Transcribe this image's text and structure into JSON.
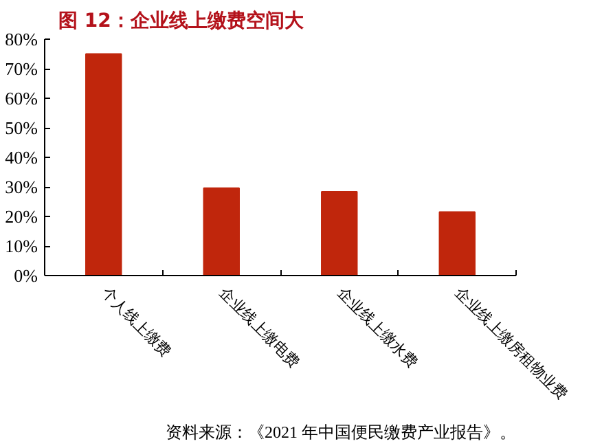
{
  "chart_data": {
    "type": "bar",
    "title": "图 12：企业线上缴费空间大",
    "categories": [
      "个人线上缴费",
      "企业线上缴电费",
      "企业线上缴水费",
      "企业线上缴房租物业费"
    ],
    "values": [
      75,
      29.6,
      28.4,
      21.5
    ],
    "color": "#c0260c",
    "ylim": [
      0,
      80
    ],
    "yticks": [
      {
        "value": 0,
        "label": "0%"
      },
      {
        "value": 10,
        "label": "10%"
      },
      {
        "value": 20,
        "label": "20%"
      },
      {
        "value": 30,
        "label": "30%"
      },
      {
        "value": 40,
        "label": "40%"
      },
      {
        "value": 50,
        "label": "50%"
      },
      {
        "value": 60,
        "label": "60%"
      },
      {
        "value": 70,
        "label": "70%"
      },
      {
        "value": 80,
        "label": "80%"
      }
    ],
    "annotations": [
      "资料来源：《2021 年中国便民缴费产业报告》。"
    ]
  }
}
